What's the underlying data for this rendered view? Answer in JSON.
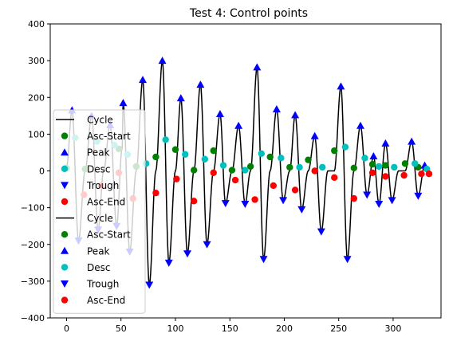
{
  "chart_data": {
    "type": "line",
    "title": "Test 4: Control points",
    "xlabel": "",
    "ylabel": "",
    "xlim": [
      -15,
      344
    ],
    "ylim": [
      -400,
      400
    ],
    "xticks": [
      0,
      50,
      100,
      150,
      200,
      250,
      300
    ],
    "yticks": [
      -400,
      -300,
      -200,
      -100,
      0,
      100,
      200,
      300,
      400
    ],
    "xtick_labels": [
      "0",
      "50",
      "100",
      "150",
      "200",
      "250",
      "300"
    ],
    "ytick_labels": [
      "−400",
      "−300",
      "−200",
      "−100",
      "0",
      "100",
      "200",
      "300",
      "400"
    ],
    "grid": false,
    "legend_position": "center-left",
    "legend": [
      {
        "label": "Cycle",
        "kind": "line",
        "color": "#000000"
      },
      {
        "label": "Asc-Start",
        "kind": "circle",
        "color": "#008000"
      },
      {
        "label": "Peak",
        "kind": "triangle-up",
        "color": "#0000ff"
      },
      {
        "label": "Desc",
        "kind": "circle",
        "color": "#00bfbf"
      },
      {
        "label": "Trough",
        "kind": "triangle-down",
        "color": "#0000ff"
      },
      {
        "label": "Asc-End",
        "kind": "circle",
        "color": "#ff0000"
      },
      {
        "label": "Cycle",
        "kind": "line",
        "color": "#000000"
      },
      {
        "label": "Asc-Start",
        "kind": "circle",
        "color": "#008000"
      },
      {
        "label": "Peak",
        "kind": "triangle-up",
        "color": "#0000ff"
      },
      {
        "label": "Desc",
        "kind": "circle",
        "color": "#00bfbf"
      },
      {
        "label": "Trough",
        "kind": "triangle-down",
        "color": "#0000ff"
      },
      {
        "label": "Asc-End",
        "kind": "circle",
        "color": "#ff0000"
      }
    ],
    "series": [
      {
        "name": "Cycle",
        "color": "#000000",
        "points": [
          [
            0,
            10
          ],
          [
            5,
            165
          ],
          [
            11,
            -190
          ],
          [
            17,
            0
          ],
          [
            23,
            150
          ],
          [
            29,
            -160
          ],
          [
            34,
            0
          ],
          [
            40,
            125
          ],
          [
            46,
            -150
          ],
          [
            51,
            60
          ],
          [
            52,
            185
          ],
          [
            58,
            -220
          ],
          [
            64,
            0
          ],
          [
            70,
            248
          ],
          [
            76,
            -310
          ],
          [
            82,
            0
          ],
          [
            88,
            300
          ],
          [
            94,
            -250
          ],
          [
            100,
            0
          ],
          [
            105,
            198
          ],
          [
            111,
            -225
          ],
          [
            117,
            0
          ],
          [
            123,
            235
          ],
          [
            129,
            -200
          ],
          [
            135,
            0
          ],
          [
            141,
            155
          ],
          [
            146,
            -88
          ],
          [
            152,
            0
          ],
          [
            158,
            123
          ],
          [
            164,
            -90
          ],
          [
            169,
            0
          ],
          [
            175,
            282
          ],
          [
            181,
            -240
          ],
          [
            187,
            0
          ],
          [
            193,
            168
          ],
          [
            199,
            -80
          ],
          [
            205,
            0
          ],
          [
            210,
            152
          ],
          [
            216,
            -105
          ],
          [
            222,
            0
          ],
          [
            228,
            95
          ],
          [
            234,
            -165
          ],
          [
            240,
            0
          ],
          [
            246,
            0
          ],
          [
            252,
            230
          ],
          [
            258,
            -240
          ],
          [
            264,
            0
          ],
          [
            270,
            123
          ],
          [
            276,
            -65
          ],
          [
            282,
            40
          ],
          [
            287,
            -90
          ],
          [
            293,
            75
          ],
          [
            299,
            -80
          ],
          [
            305,
            0
          ],
          [
            311,
            0
          ],
          [
            317,
            80
          ],
          [
            323,
            -68
          ],
          [
            329,
            15
          ],
          [
            334,
            -5
          ]
        ]
      },
      {
        "name": "Asc-Start",
        "color": "#008000",
        "points": [
          [
            0,
            8
          ],
          [
            17,
            5
          ],
          [
            48,
            60
          ],
          [
            64,
            12
          ],
          [
            82,
            38
          ],
          [
            100,
            58
          ],
          [
            117,
            2
          ],
          [
            135,
            55
          ],
          [
            152,
            2
          ],
          [
            169,
            12
          ],
          [
            187,
            38
          ],
          [
            205,
            10
          ],
          [
            222,
            30
          ],
          [
            246,
            55
          ],
          [
            264,
            8
          ],
          [
            281,
            18
          ],
          [
            293,
            15
          ],
          [
            311,
            20
          ],
          [
            323,
            10
          ]
        ]
      },
      {
        "name": "Peak",
        "color": "#0000ff",
        "points": [
          [
            5,
            165
          ],
          [
            23,
            150
          ],
          [
            40,
            125
          ],
          [
            52,
            185
          ],
          [
            70,
            248
          ],
          [
            88,
            300
          ],
          [
            105,
            198
          ],
          [
            123,
            235
          ],
          [
            141,
            155
          ],
          [
            158,
            123
          ],
          [
            175,
            282
          ],
          [
            193,
            168
          ],
          [
            210,
            152
          ],
          [
            228,
            95
          ],
          [
            252,
            230
          ],
          [
            270,
            123
          ],
          [
            282,
            40
          ],
          [
            293,
            75
          ],
          [
            317,
            80
          ],
          [
            329,
            15
          ]
        ]
      },
      {
        "name": "Desc",
        "color": "#00bfbf",
        "points": [
          [
            8,
            90
          ],
          [
            28,
            80
          ],
          [
            44,
            70
          ],
          [
            56,
            45
          ],
          [
            73,
            20
          ],
          [
            91,
            85
          ],
          [
            109,
            45
          ],
          [
            127,
            32
          ],
          [
            144,
            15
          ],
          [
            164,
            2
          ],
          [
            179,
            47
          ],
          [
            197,
            35
          ],
          [
            214,
            10
          ],
          [
            235,
            10
          ],
          [
            256,
            65
          ],
          [
            274,
            35
          ],
          [
            287,
            12
          ],
          [
            301,
            10
          ],
          [
            320,
            20
          ],
          [
            331,
            5
          ]
        ]
      },
      {
        "name": "Trough",
        "color": "#0000ff",
        "points": [
          [
            11,
            -190
          ],
          [
            29,
            -160
          ],
          [
            46,
            -150
          ],
          [
            58,
            -220
          ],
          [
            76,
            -310
          ],
          [
            94,
            -250
          ],
          [
            111,
            -225
          ],
          [
            129,
            -200
          ],
          [
            146,
            -88
          ],
          [
            164,
            -90
          ],
          [
            181,
            -240
          ],
          [
            199,
            -80
          ],
          [
            216,
            -105
          ],
          [
            234,
            -165
          ],
          [
            258,
            -240
          ],
          [
            276,
            -65
          ],
          [
            287,
            -90
          ],
          [
            299,
            -80
          ],
          [
            323,
            -68
          ]
        ]
      },
      {
        "name": "Asc-End",
        "color": "#ff0000",
        "points": [
          [
            16,
            -65
          ],
          [
            32,
            -40
          ],
          [
            48,
            -5
          ],
          [
            61,
            -75
          ],
          [
            82,
            -60
          ],
          [
            101,
            -22
          ],
          [
            117,
            -82
          ],
          [
            135,
            -5
          ],
          [
            155,
            -25
          ],
          [
            173,
            -78
          ],
          [
            190,
            -40
          ],
          [
            210,
            -52
          ],
          [
            228,
            0
          ],
          [
            246,
            -18
          ],
          [
            264,
            -75
          ],
          [
            281,
            -5
          ],
          [
            293,
            -15
          ],
          [
            310,
            -12
          ],
          [
            326,
            -8
          ],
          [
            333,
            -8
          ]
        ]
      }
    ]
  }
}
